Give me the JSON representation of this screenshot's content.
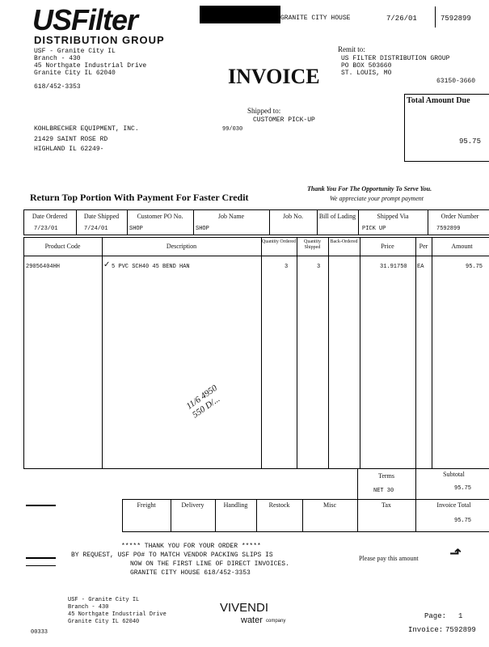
{
  "company": {
    "logo": "USFilter",
    "group": "DISTRIBUTION GROUP",
    "address": [
      "USF - Granite City IL",
      "Branch - 430",
      "45 Northgate Industrial Drive",
      "Granite City IL 62040"
    ],
    "phone": "618/452-3353"
  },
  "header": {
    "branch_name": "GRANITE CITY HOUSE",
    "date": "7/26/01",
    "invoice_no": "7592899"
  },
  "title": "INVOICE",
  "remit": {
    "label": "Remit to:",
    "lines": [
      "US FILTER DISTRIBUTION GROUP",
      "PO BOX 503660",
      "ST. LOUIS, MO"
    ],
    "zip": "63150-3660"
  },
  "total_due": {
    "label": "Total Amount Due",
    "value": "95.75"
  },
  "shipped_to": {
    "label": "Shipped to:",
    "value": "CUSTOMER PICK-UP",
    "code": "99/030"
  },
  "bill_to": [
    "KOHLBRECHER EQUIPMENT, INC.",
    "21429 SAINT ROSE RD",
    "HIGHLAND IL 62249-"
  ],
  "return_note": "Return Top Portion With Payment For Faster Credit",
  "thanks": [
    "Thank You For The Opportunity To Serve You.",
    "We appreciate your prompt payment"
  ],
  "order": {
    "headers": [
      "Date Ordered",
      "Date Shipped",
      "Customer PO No.",
      "Job Name",
      "Job No.",
      "Bill of Lading",
      "Shipped Via",
      "Order Number"
    ],
    "values": [
      "7/23/01",
      "7/24/01",
      "SHOP",
      "SHOP",
      "",
      "",
      "PICK UP",
      "7592899"
    ]
  },
  "items": {
    "headers": [
      "Product Code",
      "Description",
      "Quantity Ordered",
      "Quantity Shipped",
      "Back-Ordered",
      "Price",
      "Per",
      "Amount"
    ],
    "rows": [
      [
        "29056404HH",
        "5 PVC SCH40 45 BEND HAN",
        "3",
        "3",
        "",
        "31.91750",
        "EA",
        "95.75"
      ]
    ]
  },
  "handwriting": [
    "11/6 4950",
    "550 D/..."
  ],
  "totals": {
    "terms_label": "Terms",
    "terms": "NET 30",
    "subtotal_label": "Subtotal",
    "subtotal": "95.75",
    "charges": [
      "Freight",
      "Delivery",
      "Handling",
      "Restock",
      "Misc",
      "Tax"
    ],
    "invoice_total_label": "Invoice Total",
    "invoice_total": "95.75"
  },
  "messages": [
    "***** THANK YOU FOR YOUR ORDER *****",
    "BY REQUEST, USF PO# TO MATCH VENDOR PACKING SLIPS IS",
    "NOW ON THE FIRST LINE OF DIRECT INVOICES.",
    "GRANITE CITY HOUSE 618/452-3353"
  ],
  "pay_note": "Please pay this amount",
  "footer": {
    "address": [
      "USF - Granite City IL",
      "Branch - 430",
      "45 Northgate Industrial Drive",
      "Granite City IL 62040"
    ],
    "code": "00333",
    "vivendi": "VIVENDI",
    "water": "water",
    "company": "company",
    "page_label": "Page:",
    "page": "1",
    "invoice_label": "Invoice:",
    "invoice": "7592899"
  }
}
